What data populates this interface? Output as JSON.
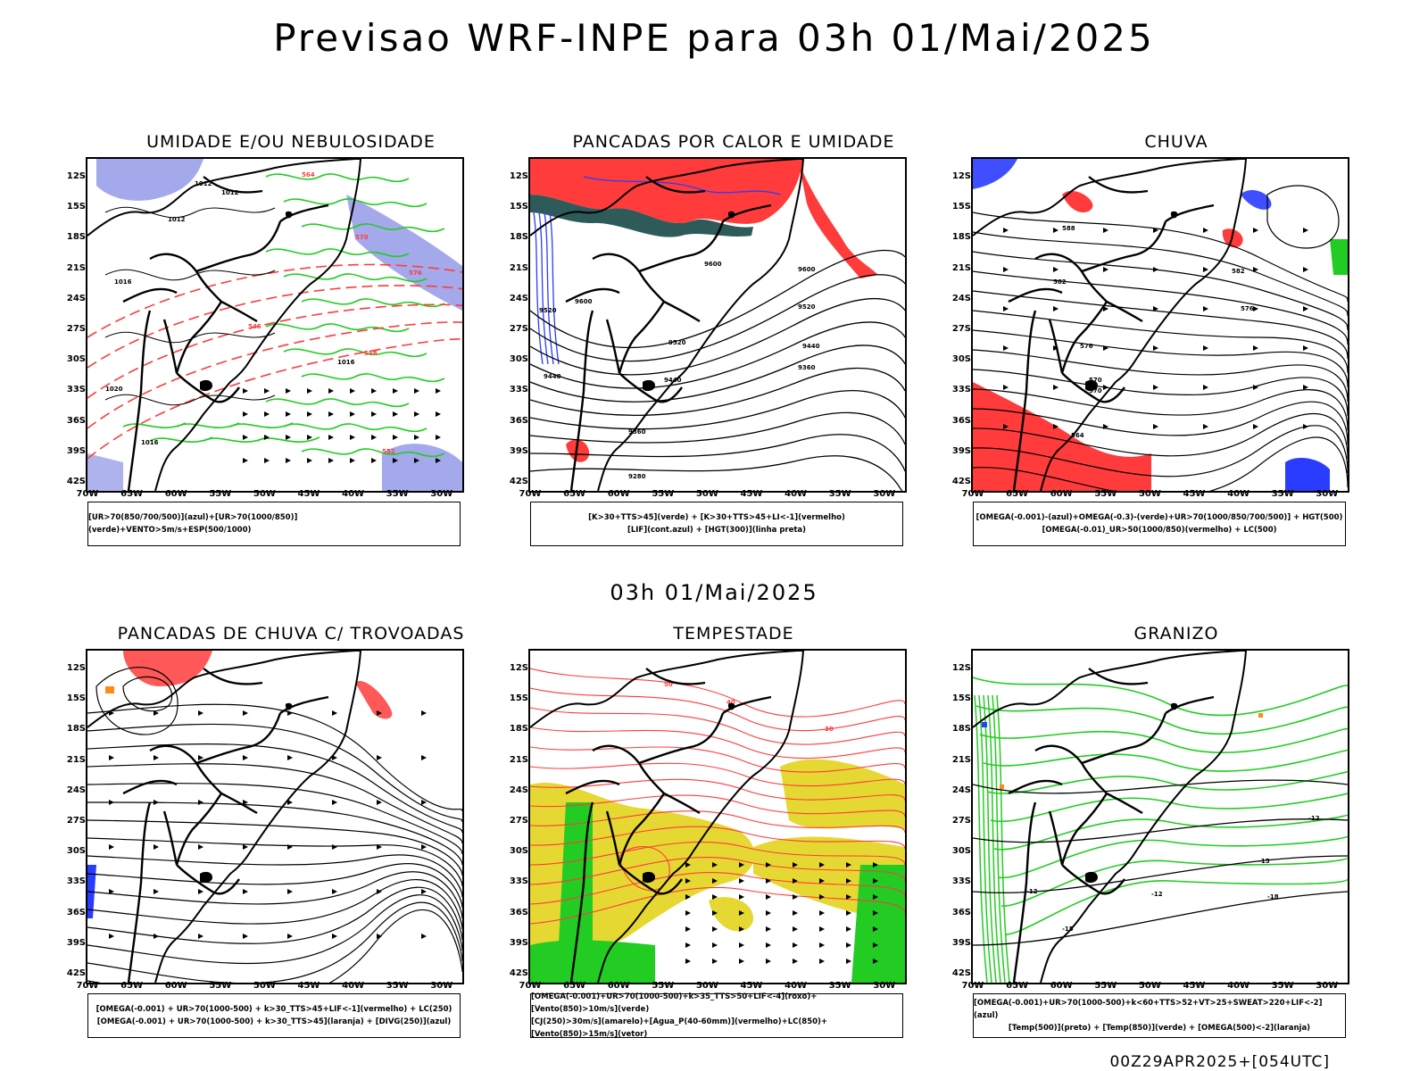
{
  "title": "Previsao WRF-INPE  para 03h 01/Mai/2025",
  "subtitle": "03h 01/Mai/2025",
  "footer": "00Z29APR2025+[054UTC]",
  "axes": {
    "lat_labels": [
      "12S",
      "15S",
      "18S",
      "21S",
      "24S",
      "27S",
      "30S",
      "33S",
      "36S",
      "39S",
      "42S"
    ],
    "lon_labels": [
      "70W",
      "65W",
      "60W",
      "55W",
      "50W",
      "45W",
      "40W",
      "35W",
      "30W"
    ]
  },
  "colors": {
    "humid_blue": "#9aa0ea",
    "green": "#22cc22",
    "red": "#ff3b3b",
    "dark_teal": "#2f5a5a",
    "blue": "#2a3cff",
    "yellow": "#e6d832",
    "orange": "#ff8a1a",
    "black": "#000000"
  },
  "panels": [
    {
      "title": "UMIDADE E/OU NEBULOSIDADE",
      "legend": [
        "[UR>70(850/700/500)](azul)+[UR>70(1000/850)](verde)+VENTO>5m/s+ESP(500/1000)"
      ],
      "contour_labels": [
        "1012",
        "1012",
        "1016",
        "1020",
        "1016",
        "564",
        "570",
        "576",
        "558",
        "552",
        "546",
        "1016",
        "1012"
      ]
    },
    {
      "title": "PANCADAS POR CALOR E UMIDADE",
      "legend": [
        "[K>30+TTS>45](verde) + [K>30+TTS>45+LI<-1](vermelho)",
        "[LIF](cont.azul) + [HGT(300)](linha preta)"
      ],
      "contour_labels": [
        "9600",
        "9600",
        "9520",
        "9440",
        "9360",
        "9280",
        "9520",
        "9440",
        "9360",
        "9600",
        "9520",
        "9440"
      ]
    },
    {
      "title": "CHUVA",
      "legend": [
        "[OMEGA(-0.001)-(azul)+OMEGA(-0.3)-(verde)+UR>70(1000/850/700/500)] + HGT(500)",
        "[OMEGA(-0.01)_UR>50(1000/850)(vermelho) + LC(500)"
      ],
      "contour_labels": [
        "588",
        "582",
        "576",
        "570",
        "564",
        "582",
        "576",
        "570"
      ]
    },
    {
      "title": "PANCADAS DE CHUVA C/ TROVOADAS",
      "legend": [
        "[OMEGA(-0.001) + UR>70(1000-500) + k>30_TTS>45+LIF<-1](vermelho) + LC(250)",
        "[OMEGA(-0.001) + UR>70(1000-500) + k>30_TTS>45](laranja) + [DIVG(250)](azul)"
      ],
      "contour_labels": []
    },
    {
      "title": "TEMPESTADE",
      "legend": [
        "[OMEGA(-0.001)+UR>70(1000-500)+k>35_TTS>50+LIF<-4](roxo)+[Vento(850)>10m/s](verde)",
        "[CJ(250)>30m/s](amarelo)+[Agua_P(40-60mm)](vermelho)+LC(850)+[Vento(850)>15m/s](vetor)"
      ],
      "contour_labels": [
        "50",
        "40",
        "30"
      ]
    },
    {
      "title": "GRANIZO",
      "legend": [
        "[OMEGA(-0.001)+UR>70(1000-500)+k<60+TTS>52+VT>25+SWEAT>220+LIF<-2](azul)",
        "[Temp(500)](preto) + [Temp(850)](verde) + [OMEGA(500)<-2](laranja)"
      ],
      "contour_labels": [
        "-12",
        "-15",
        "-18",
        "-12",
        "-15",
        "-12"
      ]
    }
  ]
}
